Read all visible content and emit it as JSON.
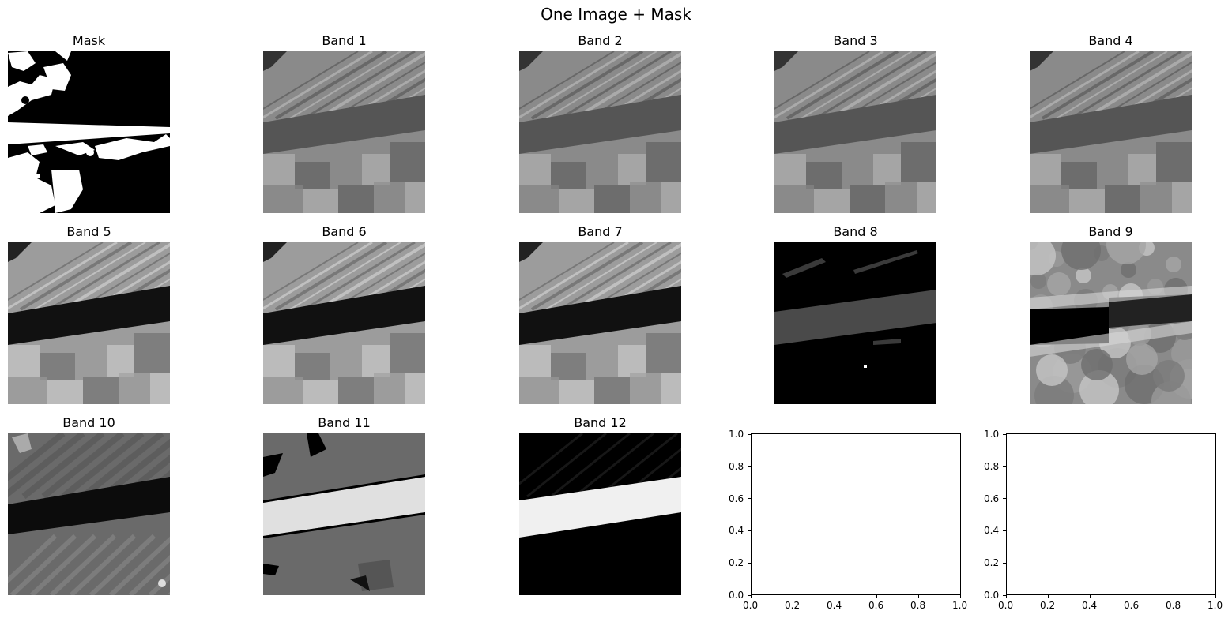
{
  "figure": {
    "title": "One Image + Mask"
  },
  "panels": [
    {
      "title": "Mask",
      "kind": "mask"
    },
    {
      "title": "Band 1",
      "kind": "band_std"
    },
    {
      "title": "Band 2",
      "kind": "band_std"
    },
    {
      "title": "Band 3",
      "kind": "band_std"
    },
    {
      "title": "Band 4",
      "kind": "band_std"
    },
    {
      "title": "Band 5",
      "kind": "band_bright"
    },
    {
      "title": "Band 6",
      "kind": "band_bright"
    },
    {
      "title": "Band 7",
      "kind": "band_bright"
    },
    {
      "title": "Band 8",
      "kind": "band_dark"
    },
    {
      "title": "Band 9",
      "kind": "band_noise"
    },
    {
      "title": "Band 10",
      "kind": "band_mid"
    },
    {
      "title": "Band 11",
      "kind": "band_class"
    },
    {
      "title": "Band 12",
      "kind": "band_inverse"
    }
  ],
  "chart_data": [
    {
      "type": "heatmap",
      "title": "One Image + Mask",
      "panels": [
        "Mask",
        "Band 1",
        "Band 2",
        "Band 3",
        "Band 4",
        "Band 5",
        "Band 6",
        "Band 7",
        "Band 8",
        "Band 9",
        "Band 10",
        "Band 11",
        "Band 12"
      ],
      "colormap": "gray",
      "axes": "off"
    },
    {
      "type": "line",
      "title": "",
      "xlim": [
        0.0,
        1.0
      ],
      "ylim": [
        0.0,
        1.0
      ],
      "xticks": [
        "0.0",
        "0.2",
        "0.4",
        "0.6",
        "0.8",
        "1.0"
      ],
      "yticks": [
        "0.0",
        "0.2",
        "0.4",
        "0.6",
        "0.8",
        "1.0"
      ],
      "series": []
    },
    {
      "type": "line",
      "title": "",
      "xlim": [
        0.0,
        1.0
      ],
      "ylim": [
        0.0,
        1.0
      ],
      "xticks": [
        "0.0",
        "0.2",
        "0.4",
        "0.6",
        "0.8",
        "1.0"
      ],
      "yticks": [
        "0.0",
        "0.2",
        "0.4",
        "0.6",
        "0.8",
        "1.0"
      ],
      "series": []
    }
  ]
}
